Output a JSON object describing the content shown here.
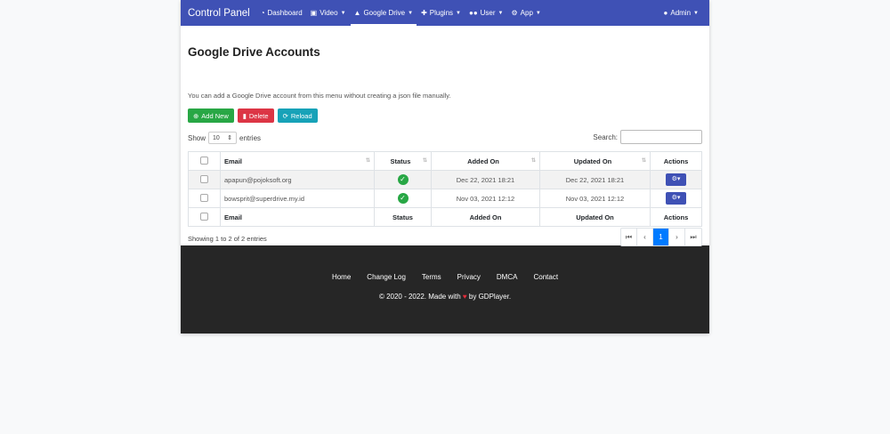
{
  "nav": {
    "brand": "Control Panel",
    "items": [
      {
        "label": "Dashboard",
        "icon": "dashboard-icon"
      },
      {
        "label": "Video",
        "icon": "film-icon"
      },
      {
        "label": "Google Drive",
        "icon": "google-drive-icon"
      },
      {
        "label": "Plugins",
        "icon": "puzzle-icon"
      },
      {
        "label": "User",
        "icon": "users-icon"
      },
      {
        "label": "App",
        "icon": "gear-icon"
      }
    ],
    "user": "Admin"
  },
  "page": {
    "title": "Google Drive Accounts",
    "description": "You can add a Google Drive account from this menu without creating a json file manually."
  },
  "buttons": {
    "add": "Add New",
    "delete": "Delete",
    "reload": "Reload",
    "colors": {
      "add": "#28a745",
      "delete": "#dc3545",
      "reload": "#17a2b8"
    }
  },
  "table": {
    "show": "Show",
    "length": "10",
    "entries": "entries",
    "search": "Search:",
    "columns": [
      "Email",
      "Status",
      "Added On",
      "Updated On",
      "Actions"
    ],
    "rows": [
      {
        "email": "apapun@pojoksoft.org",
        "status": "active",
        "added": "Dec 22, 2021 18:21",
        "updated": "Dec 22, 2021 18:21"
      },
      {
        "email": "bowsprit@superdrive.my.id",
        "status": "active",
        "added": "Nov 03, 2021 12:12",
        "updated": "Nov 03, 2021 12:12"
      }
    ],
    "info": "Showing 1 to 2 of 2 entries",
    "page": "1"
  },
  "footer": {
    "links": [
      "Home",
      "Change Log",
      "Terms",
      "Privacy",
      "DMCA",
      "Contact"
    ],
    "copy_pre": "© 2020 - 2022. Made with",
    "copy_post": "by GDPlayer."
  }
}
